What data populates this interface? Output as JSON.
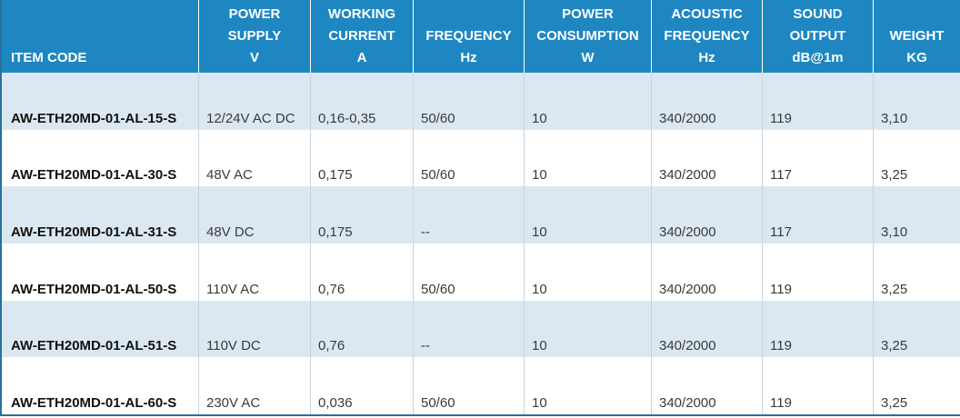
{
  "headers": [
    [
      "ITEM CODE"
    ],
    [
      "POWER",
      "SUPPLY",
      "V"
    ],
    [
      "WORKING",
      "CURRENT",
      "A"
    ],
    [
      "FREQUENCY",
      "Hz"
    ],
    [
      "POWER",
      "CONSUMPTION",
      "W"
    ],
    [
      "ACOUSTIC",
      "FREQUENCY",
      "Hz"
    ],
    [
      "SOUND",
      "OUTPUT",
      "dB@1m"
    ],
    [
      "WEIGHT",
      "KG"
    ]
  ],
  "rows": [
    [
      "AW-ETH20MD-01-AL-15-S",
      "12/24V AC DC",
      "0,16-0,35",
      "50/60",
      "10",
      "340/2000",
      "119",
      "3,10"
    ],
    [
      "AW-ETH20MD-01-AL-30-S",
      "48V AC",
      "0,175",
      "50/60",
      "10",
      "340/2000",
      "117",
      "3,25"
    ],
    [
      "AW-ETH20MD-01-AL-31-S",
      "48V DC",
      "0,175",
      "--",
      "10",
      "340/2000",
      "117",
      "3,10"
    ],
    [
      "AW-ETH20MD-01-AL-50-S",
      "110V AC",
      "0,76",
      "50/60",
      "10",
      "340/2000",
      "119",
      "3,25"
    ],
    [
      "AW-ETH20MD-01-AL-51-S",
      "110V DC",
      "0,76",
      "--",
      "10",
      "340/2000",
      "119",
      "3,25"
    ],
    [
      "AW-ETH20MD-01-AL-60-S",
      "230V AC",
      "0,036",
      "50/60",
      "10",
      "340/2000",
      "119",
      "3,25"
    ]
  ],
  "colors": {
    "header_bg": "#1e87c2",
    "row_shaded": "#dce8f1",
    "border": "#2a6f9e"
  }
}
